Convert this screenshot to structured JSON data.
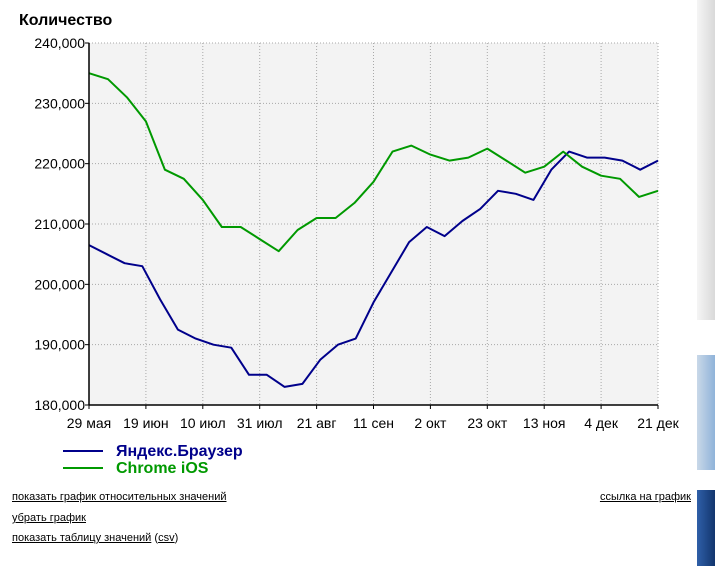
{
  "chart_data": {
    "type": "line",
    "ylabel": "Количество",
    "ylim": [
      180000,
      240000
    ],
    "yticks": [
      "240,000",
      "230,000",
      "220,000",
      "210,000",
      "200,000",
      "190,000",
      "180,000"
    ],
    "ytick_values": [
      240000,
      230000,
      220000,
      210000,
      200000,
      190000,
      180000
    ],
    "xticks": [
      "29 мая",
      "19 июн",
      "10 июл",
      "31 июл",
      "21 авг",
      "11 сен",
      "2 окт",
      "23 окт",
      "13 ноя",
      "4 дек",
      "21 дек"
    ],
    "x_count": 44,
    "grid": true,
    "series": [
      {
        "name": "Яндекс.Браузер",
        "color": "#00008b",
        "values": [
          206500,
          205000,
          203500,
          203000,
          197500,
          192500,
          191000,
          190000,
          189500,
          185000,
          185000,
          183000,
          183500,
          187500,
          190000,
          191000,
          197000,
          202000,
          207000,
          209500,
          208000,
          210500,
          212500,
          215500,
          215000,
          214000,
          219000,
          222000,
          221000,
          221000,
          220500,
          219000,
          220500
        ]
      },
      {
        "name": "Chrome iOS",
        "color": "#009900",
        "values": [
          235000,
          234000,
          231000,
          227000,
          219000,
          217500,
          214000,
          209500,
          209500,
          207500,
          205500,
          209000,
          211000,
          211000,
          213500,
          217000,
          222000,
          223000,
          221500,
          220500,
          221000,
          222500,
          220500,
          218500,
          219500,
          222000,
          219500,
          218000,
          217500,
          214500,
          215500
        ]
      }
    ]
  },
  "links": {
    "relative": "показать график относительных значений",
    "remove": "убрать график",
    "table": "показать таблицу значений",
    "csv": "csv",
    "paren_open": "(",
    "paren_close": ")",
    "chart_link": "ссылка на график"
  }
}
